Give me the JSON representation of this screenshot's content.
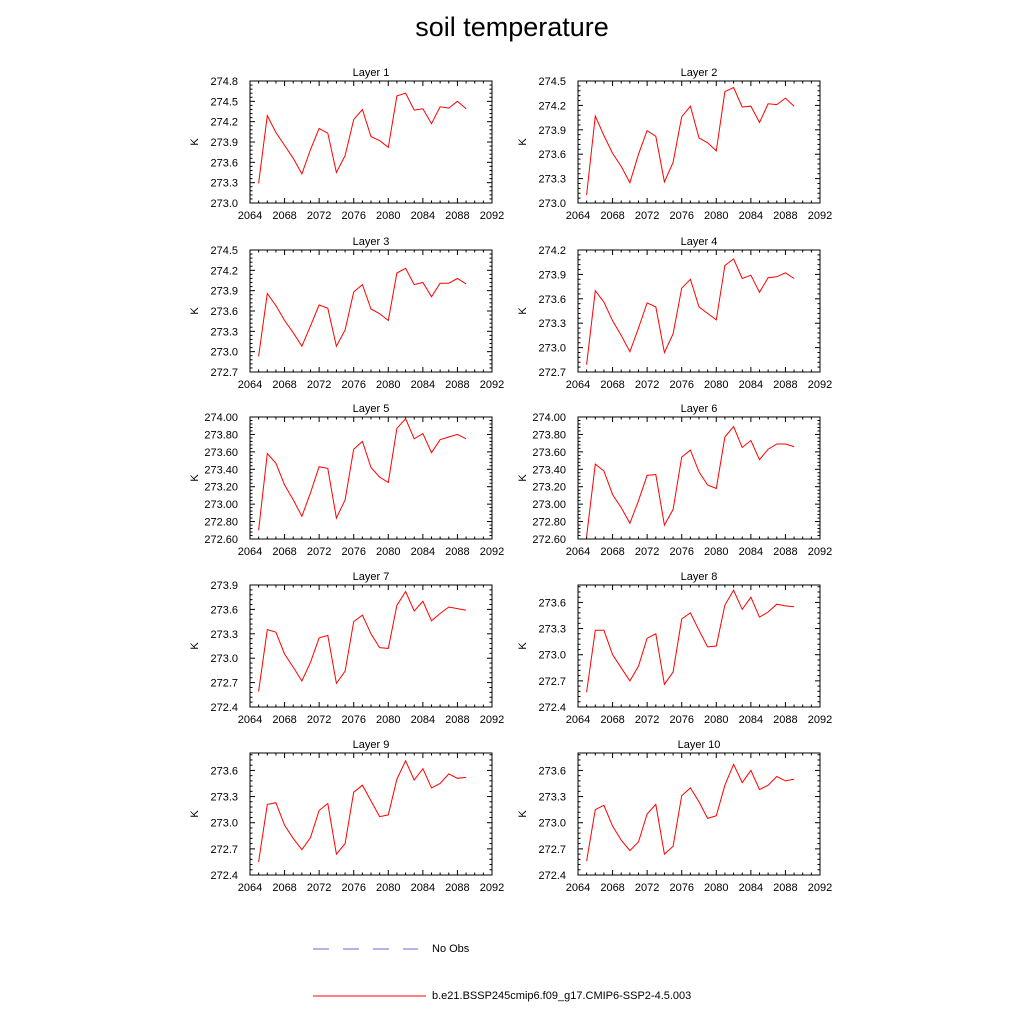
{
  "title": "soil temperature",
  "colors": {
    "model_line": "#ff0000",
    "obs_line": "#6a6ad0",
    "axis": "#000000"
  },
  "legend": {
    "obs_label": "No Obs",
    "model_label": "b.e21.BSSP245cmip6.f09_g17.CMIP6-SSP2-4.5.003"
  },
  "chart_data": [
    {
      "type": "line",
      "title": "Layer 1",
      "ylabel": "K",
      "xlim": [
        2064,
        2092
      ],
      "xticks": [
        2064,
        2068,
        2072,
        2076,
        2080,
        2084,
        2088,
        2092
      ],
      "ylim": [
        273.0,
        274.8
      ],
      "yticks": [
        "273.0",
        "273.3",
        "273.6",
        "273.9",
        "274.2",
        "274.5",
        "274.8"
      ],
      "x": [
        2065,
        2066,
        2067,
        2068,
        2069,
        2070,
        2071,
        2072,
        2073,
        2074,
        2075,
        2076,
        2077,
        2078,
        2079,
        2080,
        2081,
        2082,
        2083,
        2084,
        2085,
        2086,
        2087,
        2088,
        2089
      ],
      "series": [
        {
          "values": [
            273.29,
            274.29,
            274.04,
            273.85,
            273.66,
            273.43,
            273.79,
            274.1,
            274.03,
            273.45,
            273.7,
            274.23,
            274.38,
            273.98,
            273.92,
            273.82,
            274.58,
            274.62,
            274.37,
            274.39,
            274.17,
            274.42,
            274.4,
            274.5,
            274.39
          ]
        }
      ]
    },
    {
      "type": "line",
      "title": "Layer 2",
      "ylabel": "K",
      "xlim": [
        2064,
        2092
      ],
      "xticks": [
        2064,
        2068,
        2072,
        2076,
        2080,
        2084,
        2088,
        2092
      ],
      "ylim": [
        273.0,
        274.5
      ],
      "yticks": [
        "273.0",
        "273.3",
        "273.6",
        "273.9",
        "274.2",
        "274.5"
      ],
      "x": [
        2065,
        2066,
        2067,
        2068,
        2069,
        2070,
        2071,
        2072,
        2073,
        2074,
        2075,
        2076,
        2077,
        2078,
        2079,
        2080,
        2081,
        2082,
        2083,
        2084,
        2085,
        2086,
        2087,
        2088,
        2089
      ],
      "series": [
        {
          "values": [
            273.1,
            274.07,
            273.83,
            273.61,
            273.45,
            273.25,
            273.6,
            273.89,
            273.82,
            273.26,
            273.5,
            274.06,
            274.19,
            273.8,
            273.74,
            273.64,
            274.37,
            274.42,
            274.18,
            274.19,
            273.99,
            274.22,
            274.21,
            274.29,
            274.19
          ]
        }
      ]
    },
    {
      "type": "line",
      "title": "Layer 3",
      "ylabel": "K",
      "xlim": [
        2064,
        2092
      ],
      "xticks": [
        2064,
        2068,
        2072,
        2076,
        2080,
        2084,
        2088,
        2092
      ],
      "ylim": [
        272.7,
        274.5
      ],
      "yticks": [
        "272.7",
        "273.0",
        "273.3",
        "273.6",
        "273.9",
        "274.2",
        "274.5"
      ],
      "x": [
        2065,
        2066,
        2067,
        2068,
        2069,
        2070,
        2071,
        2072,
        2073,
        2074,
        2075,
        2076,
        2077,
        2078,
        2079,
        2080,
        2081,
        2082,
        2083,
        2084,
        2085,
        2086,
        2087,
        2088,
        2089
      ],
      "series": [
        {
          "values": [
            272.93,
            273.86,
            273.68,
            273.46,
            273.28,
            273.08,
            273.38,
            273.69,
            273.64,
            273.08,
            273.32,
            273.88,
            273.99,
            273.63,
            273.56,
            273.46,
            274.16,
            274.23,
            273.99,
            274.02,
            273.81,
            274.01,
            274.01,
            274.08,
            274.0
          ]
        }
      ]
    },
    {
      "type": "line",
      "title": "Layer 4",
      "ylabel": "K",
      "xlim": [
        2064,
        2092
      ],
      "xticks": [
        2064,
        2068,
        2072,
        2076,
        2080,
        2084,
        2088,
        2092
      ],
      "ylim": [
        272.7,
        274.2
      ],
      "yticks": [
        "272.7",
        "273.0",
        "273.3",
        "273.6",
        "273.9",
        "274.2"
      ],
      "x": [
        2065,
        2066,
        2067,
        2068,
        2069,
        2070,
        2071,
        2072,
        2073,
        2074,
        2075,
        2076,
        2077,
        2078,
        2079,
        2080,
        2081,
        2082,
        2083,
        2084,
        2085,
        2086,
        2087,
        2088,
        2089
      ],
      "series": [
        {
          "values": [
            272.79,
            273.7,
            273.56,
            273.33,
            273.15,
            272.95,
            273.24,
            273.55,
            273.5,
            272.94,
            273.17,
            273.73,
            273.84,
            273.5,
            273.42,
            273.34,
            274.01,
            274.09,
            273.85,
            273.89,
            273.68,
            273.86,
            273.87,
            273.92,
            273.85
          ]
        }
      ]
    },
    {
      "type": "line",
      "title": "Layer 5",
      "ylabel": "K",
      "xlim": [
        2064,
        2092
      ],
      "xticks": [
        2064,
        2068,
        2072,
        2076,
        2080,
        2084,
        2088,
        2092
      ],
      "ylim": [
        272.6,
        274.0
      ],
      "yticks": [
        "272.60",
        "272.80",
        "273.00",
        "273.20",
        "273.40",
        "273.60",
        "273.80",
        "274.00"
      ],
      "x": [
        2065,
        2066,
        2067,
        2068,
        2069,
        2070,
        2071,
        2072,
        2073,
        2074,
        2075,
        2076,
        2077,
        2078,
        2079,
        2080,
        2081,
        2082,
        2083,
        2084,
        2085,
        2086,
        2087,
        2088,
        2089
      ],
      "series": [
        {
          "values": [
            272.7,
            273.58,
            273.47,
            273.22,
            273.05,
            272.86,
            273.13,
            273.43,
            273.41,
            272.84,
            273.05,
            273.63,
            273.72,
            273.42,
            273.31,
            273.25,
            273.87,
            273.98,
            273.75,
            273.81,
            273.59,
            273.74,
            273.77,
            273.8,
            273.75
          ]
        }
      ]
    },
    {
      "type": "line",
      "title": "Layer 6",
      "ylabel": "K",
      "xlim": [
        2064,
        2092
      ],
      "xticks": [
        2064,
        2068,
        2072,
        2076,
        2080,
        2084,
        2088,
        2092
      ],
      "ylim": [
        272.6,
        274.0
      ],
      "yticks": [
        "272.60",
        "272.80",
        "273.00",
        "273.20",
        "273.40",
        "273.60",
        "273.80",
        "274.00"
      ],
      "x": [
        2065,
        2066,
        2067,
        2068,
        2069,
        2070,
        2071,
        2072,
        2073,
        2074,
        2075,
        2076,
        2077,
        2078,
        2079,
        2080,
        2081,
        2082,
        2083,
        2084,
        2085,
        2086,
        2087,
        2088,
        2089
      ],
      "series": [
        {
          "values": [
            272.63,
            273.46,
            273.38,
            273.11,
            272.96,
            272.78,
            273.04,
            273.33,
            273.34,
            272.76,
            272.94,
            273.54,
            273.62,
            273.37,
            273.22,
            273.18,
            273.77,
            273.89,
            273.65,
            273.73,
            273.51,
            273.63,
            273.69,
            273.69,
            273.66
          ]
        }
      ]
    },
    {
      "type": "line",
      "title": "Layer 7",
      "ylabel": "K",
      "xlim": [
        2064,
        2092
      ],
      "xticks": [
        2064,
        2068,
        2072,
        2076,
        2080,
        2084,
        2088,
        2092
      ],
      "ylim": [
        272.4,
        273.9
      ],
      "yticks": [
        "272.4",
        "272.7",
        "273.0",
        "273.3",
        "273.6",
        "273.9"
      ],
      "x": [
        2065,
        2066,
        2067,
        2068,
        2069,
        2070,
        2071,
        2072,
        2073,
        2074,
        2075,
        2076,
        2077,
        2078,
        2079,
        2080,
        2081,
        2082,
        2083,
        2084,
        2085,
        2086,
        2087,
        2088,
        2089
      ],
      "series": [
        {
          "values": [
            272.59,
            273.35,
            273.32,
            273.05,
            272.89,
            272.72,
            272.95,
            273.25,
            273.28,
            272.69,
            272.84,
            273.45,
            273.53,
            273.3,
            273.13,
            273.12,
            273.65,
            273.82,
            273.58,
            273.7,
            273.46,
            273.55,
            273.63,
            273.61,
            273.59
          ]
        }
      ]
    },
    {
      "type": "line",
      "title": "Layer 8",
      "ylabel": "K",
      "xlim": [
        2064,
        2092
      ],
      "xticks": [
        2064,
        2068,
        2072,
        2076,
        2080,
        2084,
        2088,
        2092
      ],
      "ylim": [
        272.4,
        273.8
      ],
      "yticks": [
        "272.4",
        "272.7",
        "273.0",
        "273.3",
        "273.6"
      ],
      "x": [
        2065,
        2066,
        2067,
        2068,
        2069,
        2070,
        2071,
        2072,
        2073,
        2074,
        2075,
        2076,
        2077,
        2078,
        2079,
        2080,
        2081,
        2082,
        2083,
        2084,
        2085,
        2086,
        2087,
        2088,
        2089
      ],
      "series": [
        {
          "values": [
            272.57,
            273.28,
            273.28,
            273.0,
            272.85,
            272.7,
            272.87,
            273.19,
            273.24,
            272.66,
            272.8,
            273.41,
            273.48,
            273.28,
            273.09,
            273.1,
            273.57,
            273.74,
            273.52,
            273.66,
            273.43,
            273.49,
            273.58,
            273.56,
            273.55
          ]
        }
      ]
    },
    {
      "type": "line",
      "title": "Layer 9",
      "ylabel": "K",
      "xlim": [
        2064,
        2092
      ],
      "xticks": [
        2064,
        2068,
        2072,
        2076,
        2080,
        2084,
        2088,
        2092
      ],
      "ylim": [
        272.4,
        273.8
      ],
      "yticks": [
        "272.4",
        "272.7",
        "273.0",
        "273.3",
        "273.6"
      ],
      "x": [
        2065,
        2066,
        2067,
        2068,
        2069,
        2070,
        2071,
        2072,
        2073,
        2074,
        2075,
        2076,
        2077,
        2078,
        2079,
        2080,
        2081,
        2082,
        2083,
        2084,
        2085,
        2086,
        2087,
        2088,
        2089
      ],
      "series": [
        {
          "values": [
            272.55,
            273.21,
            273.23,
            272.97,
            272.82,
            272.69,
            272.83,
            273.14,
            273.22,
            272.64,
            272.76,
            273.35,
            273.43,
            273.25,
            273.07,
            273.09,
            273.5,
            273.71,
            273.49,
            273.62,
            273.4,
            273.45,
            273.56,
            273.51,
            273.52
          ]
        }
      ]
    },
    {
      "type": "line",
      "title": "Layer 10",
      "ylabel": "K",
      "xlim": [
        2064,
        2092
      ],
      "xticks": [
        2064,
        2068,
        2072,
        2076,
        2080,
        2084,
        2088,
        2092
      ],
      "ylim": [
        272.4,
        273.8
      ],
      "yticks": [
        "272.4",
        "272.7",
        "273.0",
        "273.3",
        "273.6"
      ],
      "x": [
        2065,
        2066,
        2067,
        2068,
        2069,
        2070,
        2071,
        2072,
        2073,
        2074,
        2075,
        2076,
        2077,
        2078,
        2079,
        2080,
        2081,
        2082,
        2083,
        2084,
        2085,
        2086,
        2087,
        2088,
        2089
      ],
      "series": [
        {
          "values": [
            272.56,
            273.15,
            273.2,
            272.96,
            272.8,
            272.68,
            272.78,
            273.1,
            273.21,
            272.64,
            272.73,
            273.31,
            273.4,
            273.24,
            273.05,
            273.08,
            273.43,
            273.67,
            273.46,
            273.6,
            273.38,
            273.43,
            273.53,
            273.48,
            273.5
          ]
        }
      ]
    }
  ]
}
